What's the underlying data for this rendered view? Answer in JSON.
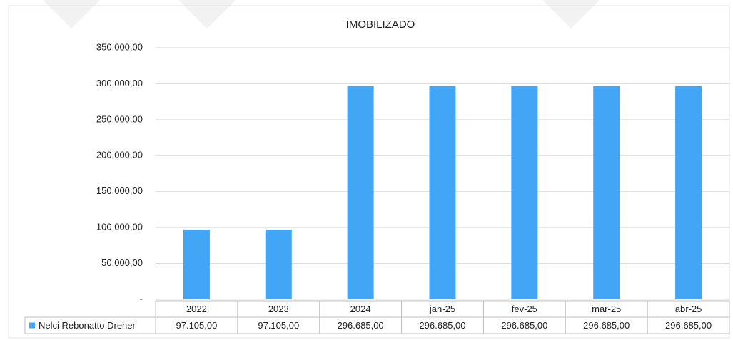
{
  "chart_data": {
    "type": "bar",
    "title": "IMOBILIZADO",
    "categories": [
      "2022",
      "2023",
      "2024",
      "jan-25",
      "fev-25",
      "mar-25",
      "abr-25"
    ],
    "series": [
      {
        "name": "Nelci Rebonatto Dreher",
        "color": "#42a5f5",
        "values": [
          97105,
          97105,
          296685,
          296685,
          296685,
          296685,
          296685
        ],
        "value_labels": [
          "97.105,00",
          "97.105,00",
          "296.685,00",
          "296.685,00",
          "296.685,00",
          "296.685,00",
          "296.685,00"
        ]
      }
    ],
    "ylim": [
      0,
      350000
    ],
    "yticks": [
      {
        "value": 0,
        "label": "-"
      },
      {
        "value": 50000,
        "label": "50.000,00"
      },
      {
        "value": 100000,
        "label": "100.000,00"
      },
      {
        "value": 150000,
        "label": "150.000,00"
      },
      {
        "value": 200000,
        "label": "200.000,00"
      },
      {
        "value": 250000,
        "label": "250.000,00"
      },
      {
        "value": 300000,
        "label": "300.000,00"
      },
      {
        "value": 350000,
        "label": "350.000,00"
      }
    ],
    "grid": true
  }
}
